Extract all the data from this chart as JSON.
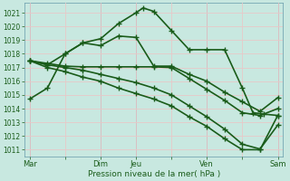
{
  "title": "",
  "xlabel": "Pression niveau de la mer( hPa )",
  "ylabel": "",
  "bg_color": "#c8e8e0",
  "grid_color": "#e8c8c8",
  "line_color": "#1a5c1a",
  "ylim": [
    1010.5,
    1021.7
  ],
  "yticks": [
    1011,
    1012,
    1013,
    1014,
    1015,
    1016,
    1017,
    1018,
    1019,
    1020,
    1021
  ],
  "xtick_labels": [
    "Mar",
    "",
    "Dim",
    "Jeu",
    "",
    "Ven",
    "",
    "Sam"
  ],
  "xtick_positions": [
    0,
    1,
    2,
    3,
    4,
    5,
    6,
    7
  ],
  "vline_color": "#8899aa",
  "vlines": [
    0,
    2,
    3,
    5,
    7
  ],
  "series": [
    {
      "x": [
        0,
        0.5,
        1.0,
        1.5,
        2.0,
        2.5,
        3.0,
        3.2,
        3.5,
        4.0,
        4.5,
        5.0,
        5.5,
        6.0,
        6.3,
        6.6,
        7.0
      ],
      "y": [
        1014.7,
        1015.5,
        1018.0,
        1018.8,
        1019.1,
        1020.2,
        1021.0,
        1021.35,
        1021.1,
        1019.7,
        1018.3,
        1018.3,
        1018.3,
        1015.5,
        1013.7,
        1013.6,
        1013.5
      ],
      "linewidth": 1.2
    },
    {
      "x": [
        0,
        0.5,
        1.0,
        1.5,
        2.0,
        2.5,
        3.0,
        3.5,
        4.0,
        4.5,
        5.0,
        5.5,
        6.0,
        6.5,
        7.0
      ],
      "y": [
        1017.5,
        1017.2,
        1018.0,
        1018.8,
        1018.6,
        1019.3,
        1019.2,
        1017.1,
        1017.1,
        1016.5,
        1016.0,
        1015.2,
        1014.5,
        1013.8,
        1014.8
      ],
      "linewidth": 1.2
    },
    {
      "x": [
        0,
        0.5,
        1.0,
        1.5,
        2.0,
        2.5,
        3.0,
        3.5,
        4.0,
        4.5,
        5.0,
        5.5,
        6.0,
        6.5,
        7.0
      ],
      "y": [
        1017.5,
        1017.3,
        1017.1,
        1017.05,
        1017.05,
        1017.05,
        1017.05,
        1017.05,
        1017.0,
        1016.2,
        1015.4,
        1014.6,
        1013.7,
        1013.5,
        1014.0
      ],
      "linewidth": 1.2
    },
    {
      "x": [
        0,
        0.5,
        1.0,
        1.5,
        2.0,
        2.5,
        3.0,
        3.5,
        4.0,
        4.5,
        5.0,
        5.5,
        6.0,
        6.5,
        7.0
      ],
      "y": [
        1017.5,
        1017.2,
        1017.0,
        1016.8,
        1016.5,
        1016.2,
        1015.9,
        1015.5,
        1015.0,
        1014.2,
        1013.4,
        1012.5,
        1011.4,
        1011.05,
        1012.8
      ],
      "linewidth": 1.2
    },
    {
      "x": [
        0,
        0.5,
        1.0,
        1.5,
        2.0,
        2.5,
        3.0,
        3.5,
        4.0,
        4.5,
        5.0,
        5.5,
        6.0,
        6.5,
        7.0
      ],
      "y": [
        1017.5,
        1017.0,
        1016.7,
        1016.3,
        1016.0,
        1015.5,
        1015.1,
        1014.7,
        1014.2,
        1013.4,
        1012.7,
        1011.8,
        1011.0,
        1011.0,
        1013.5
      ],
      "linewidth": 1.2
    }
  ]
}
